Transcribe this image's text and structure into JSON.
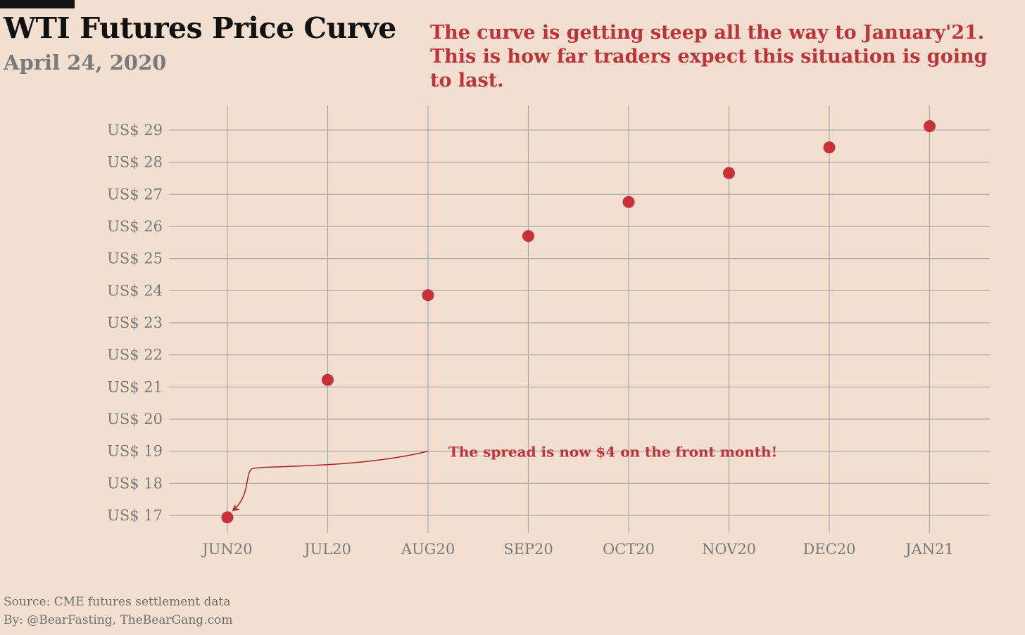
{
  "chart_data": {
    "type": "scatter",
    "title": "WTI Futures Price Curve",
    "subtitle": "April 24, 2020",
    "headline": "The curve is getting steep all the way to January'21. This is how far traders expect this situation is going to last.",
    "categories": [
      "JUN20",
      "JUL20",
      "AUG20",
      "SEP20",
      "OCT20",
      "NOV20",
      "DEC20",
      "JAN21"
    ],
    "series": [
      {
        "values": [
          16.94,
          21.22,
          23.86,
          25.7,
          26.76,
          27.66,
          28.46,
          29.12
        ]
      }
    ],
    "y_ticks": [
      17,
      18,
      19,
      20,
      21,
      22,
      23,
      24,
      25,
      26,
      27,
      28,
      29
    ],
    "y_tick_prefix": "US$ ",
    "ylim": [
      16.7,
      29.8
    ],
    "grid": true,
    "xlabel": "",
    "ylabel": "",
    "annotation": {
      "text": "The spread is now $4 on the front month!",
      "target_category": "JUN20",
      "target_value": 16.94
    },
    "colors": {
      "point": "#c8313a",
      "annotation": "#c0323a",
      "grid": "#a8a8a8",
      "background": "#f3dfcf"
    }
  },
  "footer": {
    "source": "Source: CME futures settlement data",
    "byline": "By: @BearFasting, TheBearGang.com"
  }
}
